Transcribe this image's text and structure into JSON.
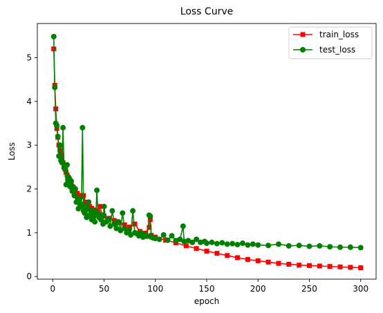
{
  "chart_data": {
    "type": "line",
    "title": "Loss Curve",
    "xlabel": "epoch",
    "ylabel": "Loss",
    "xlim": [
      -15,
      315
    ],
    "ylim": [
      -0.06,
      5.78
    ],
    "xticks": [
      0,
      50,
      100,
      150,
      200,
      250,
      300
    ],
    "yticks": [
      0,
      1,
      2,
      3,
      4,
      5
    ],
    "grid": false,
    "legend_position": "top-right",
    "series": [
      {
        "name": "train_loss",
        "color": "#ff0000",
        "marker": "square",
        "points": [
          [
            1,
            5.2
          ],
          [
            2,
            4.37
          ],
          [
            3,
            3.83
          ],
          [
            4,
            3.38
          ],
          [
            5,
            3.18
          ],
          [
            6,
            3.0
          ],
          [
            7,
            2.88
          ],
          [
            8,
            2.78
          ],
          [
            9,
            2.68
          ],
          [
            10,
            2.6
          ],
          [
            11,
            2.52
          ],
          [
            12,
            2.45
          ],
          [
            13,
            2.38
          ],
          [
            14,
            2.32
          ],
          [
            15,
            2.27
          ],
          [
            16,
            2.2
          ],
          [
            17,
            2.15
          ],
          [
            18,
            2.1
          ],
          [
            19,
            2.05
          ],
          [
            20,
            2.01
          ],
          [
            22,
            1.95
          ],
          [
            24,
            1.9
          ],
          [
            26,
            1.85
          ],
          [
            28,
            1.82
          ],
          [
            30,
            1.85
          ],
          [
            32,
            1.7
          ],
          [
            34,
            1.64
          ],
          [
            36,
            1.6
          ],
          [
            38,
            1.56
          ],
          [
            40,
            1.52
          ],
          [
            42,
            1.5
          ],
          [
            44,
            1.47
          ],
          [
            46,
            1.6
          ],
          [
            48,
            1.41
          ],
          [
            50,
            1.38
          ],
          [
            55,
            1.33
          ],
          [
            60,
            1.28
          ],
          [
            65,
            1.23
          ],
          [
            70,
            1.18
          ],
          [
            75,
            1.13
          ],
          [
            80,
            1.2
          ],
          [
            85,
            1.03
          ],
          [
            90,
            0.99
          ],
          [
            94,
            1.12
          ],
          [
            95,
            1.3
          ],
          [
            96,
            0.94
          ],
          [
            100,
            0.9
          ],
          [
            110,
            0.83
          ],
          [
            120,
            0.77
          ],
          [
            130,
            0.7
          ],
          [
            140,
            0.64
          ],
          [
            150,
            0.58
          ],
          [
            160,
            0.53
          ],
          [
            170,
            0.48
          ],
          [
            180,
            0.43
          ],
          [
            190,
            0.39
          ],
          [
            200,
            0.36
          ],
          [
            210,
            0.33
          ],
          [
            220,
            0.3
          ],
          [
            230,
            0.28
          ],
          [
            240,
            0.26
          ],
          [
            250,
            0.25
          ],
          [
            260,
            0.24
          ],
          [
            270,
            0.23
          ],
          [
            280,
            0.22
          ],
          [
            290,
            0.21
          ],
          [
            300,
            0.2
          ]
        ]
      },
      {
        "name": "test_loss",
        "color": "#008000",
        "marker": "circle",
        "points": [
          [
            1,
            5.48
          ],
          [
            2,
            4.32
          ],
          [
            3,
            3.5
          ],
          [
            4,
            3.45
          ],
          [
            5,
            3.2
          ],
          [
            6,
            2.75
          ],
          [
            7,
            3.0
          ],
          [
            8,
            2.65
          ],
          [
            9,
            2.6
          ],
          [
            10,
            3.4
          ],
          [
            11,
            2.48
          ],
          [
            12,
            2.55
          ],
          [
            13,
            2.1
          ],
          [
            14,
            2.55
          ],
          [
            15,
            2.2
          ],
          [
            16,
            2.25
          ],
          [
            17,
            2.05
          ],
          [
            18,
            2.18
          ],
          [
            19,
            1.95
          ],
          [
            20,
            2.05
          ],
          [
            21,
            1.85
          ],
          [
            22,
            2.0
          ],
          [
            23,
            1.7
          ],
          [
            24,
            1.8
          ],
          [
            25,
            1.55
          ],
          [
            26,
            1.75
          ],
          [
            27,
            1.6
          ],
          [
            28,
            1.65
          ],
          [
            29,
            3.4
          ],
          [
            30,
            1.5
          ],
          [
            31,
            1.45
          ],
          [
            32,
            1.6
          ],
          [
            33,
            1.35
          ],
          [
            34,
            1.55
          ],
          [
            35,
            1.7
          ],
          [
            36,
            1.4
          ],
          [
            37,
            1.5
          ],
          [
            38,
            1.3
          ],
          [
            39,
            1.4
          ],
          [
            40,
            1.5
          ],
          [
            41,
            1.25
          ],
          [
            42,
            1.4
          ],
          [
            43,
            1.97
          ],
          [
            44,
            1.45
          ],
          [
            45,
            1.35
          ],
          [
            46,
            1.4
          ],
          [
            47,
            1.3
          ],
          [
            48,
            1.4
          ],
          [
            49,
            1.2
          ],
          [
            50,
            1.6
          ],
          [
            52,
            1.25
          ],
          [
            54,
            1.3
          ],
          [
            56,
            1.15
          ],
          [
            58,
            1.5
          ],
          [
            60,
            1.2
          ],
          [
            62,
            1.1
          ],
          [
            64,
            1.25
          ],
          [
            66,
            1.05
          ],
          [
            68,
            1.45
          ],
          [
            70,
            1.1
          ],
          [
            72,
            1.0
          ],
          [
            74,
            1.05
          ],
          [
            76,
            0.95
          ],
          [
            78,
            1.5
          ],
          [
            80,
            1.0
          ],
          [
            82,
            0.98
          ],
          [
            84,
            0.93
          ],
          [
            86,
            1.0
          ],
          [
            88,
            0.9
          ],
          [
            90,
            0.95
          ],
          [
            92,
            0.92
          ],
          [
            94,
            1.4
          ],
          [
            95,
            1.38
          ],
          [
            96,
            0.9
          ],
          [
            98,
            0.88
          ],
          [
            100,
            0.87
          ],
          [
            104,
            0.85
          ],
          [
            108,
            0.95
          ],
          [
            112,
            0.83
          ],
          [
            116,
            0.93
          ],
          [
            120,
            0.82
          ],
          [
            124,
            0.85
          ],
          [
            127,
            1.15
          ],
          [
            128,
            0.8
          ],
          [
            132,
            0.82
          ],
          [
            136,
            0.78
          ],
          [
            140,
            0.85
          ],
          [
            144,
            0.78
          ],
          [
            148,
            0.8
          ],
          [
            150,
            0.76
          ],
          [
            155,
            0.78
          ],
          [
            160,
            0.75
          ],
          [
            165,
            0.77
          ],
          [
            170,
            0.74
          ],
          [
            175,
            0.75
          ],
          [
            180,
            0.73
          ],
          [
            185,
            0.76
          ],
          [
            190,
            0.72
          ],
          [
            195,
            0.74
          ],
          [
            200,
            0.72
          ],
          [
            210,
            0.71
          ],
          [
            220,
            0.74
          ],
          [
            230,
            0.7
          ],
          [
            240,
            0.71
          ],
          [
            250,
            0.69
          ],
          [
            260,
            0.7
          ],
          [
            270,
            0.68
          ],
          [
            280,
            0.67
          ],
          [
            290,
            0.67
          ],
          [
            300,
            0.66
          ]
        ]
      }
    ]
  }
}
